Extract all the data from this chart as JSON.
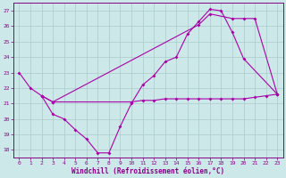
{
  "xlabel": "Windchill (Refroidissement éolien,°C)",
  "xlim": [
    -0.5,
    23.5
  ],
  "ylim": [
    17.5,
    27.5
  ],
  "yticks": [
    18,
    19,
    20,
    21,
    22,
    23,
    24,
    25,
    26,
    27
  ],
  "xticks": [
    0,
    1,
    2,
    3,
    4,
    5,
    6,
    7,
    8,
    9,
    10,
    11,
    12,
    13,
    14,
    15,
    16,
    17,
    18,
    19,
    20,
    21,
    22,
    23
  ],
  "bg_color": "#cce8e8",
  "line_color": "#aa00aa",
  "grid_color": "#aacccc",
  "tick_color": "#880088",
  "line1_x": [
    0,
    1,
    2,
    3,
    4,
    5,
    6,
    7,
    8,
    9,
    10,
    11,
    12,
    13,
    14,
    15,
    16,
    17,
    18,
    19,
    20,
    23
  ],
  "line1_y": [
    23,
    22,
    21.5,
    20.3,
    20.0,
    19.3,
    18.7,
    17.8,
    17.8,
    19.5,
    21.0,
    22.2,
    22.8,
    23.7,
    24.0,
    25.5,
    26.3,
    27.1,
    27.0,
    25.6,
    23.9,
    21.6
  ],
  "line2_x": [
    2,
    3,
    10,
    11,
    12,
    13,
    14,
    15,
    16,
    17,
    18,
    19,
    20,
    21,
    22,
    23
  ],
  "line2_y": [
    21.5,
    21.1,
    21.1,
    21.2,
    21.2,
    21.3,
    21.3,
    21.3,
    21.3,
    21.3,
    21.3,
    21.3,
    21.3,
    21.4,
    21.5,
    21.6
  ],
  "line3_x": [
    2,
    3,
    16,
    17,
    19,
    20,
    21,
    23
  ],
  "line3_y": [
    21.5,
    21.1,
    26.1,
    26.8,
    26.5,
    26.5,
    26.5,
    21.6
  ]
}
